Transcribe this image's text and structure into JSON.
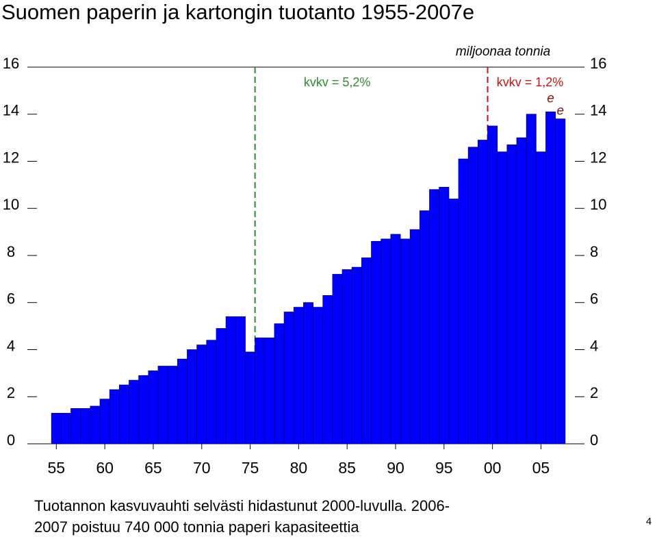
{
  "chart_data": {
    "type": "bar",
    "title": "Suomen paperin ja kartongin tuotanto 1955-2007e",
    "unit_label": "miljoonaa tonnia",
    "x": [
      1955,
      1956,
      1957,
      1958,
      1959,
      1960,
      1961,
      1962,
      1963,
      1964,
      1965,
      1966,
      1967,
      1968,
      1969,
      1970,
      1971,
      1972,
      1973,
      1974,
      1975,
      1976,
      1977,
      1978,
      1979,
      1980,
      1981,
      1982,
      1983,
      1984,
      1985,
      1986,
      1987,
      1988,
      1989,
      1990,
      1991,
      1992,
      1993,
      1994,
      1995,
      1996,
      1997,
      1998,
      1999,
      2000,
      2001,
      2002,
      2003,
      2004,
      2005,
      2006,
      2007
    ],
    "values": [
      1.3,
      1.3,
      1.5,
      1.5,
      1.6,
      1.9,
      2.3,
      2.5,
      2.7,
      2.9,
      3.1,
      3.3,
      3.3,
      3.6,
      4.0,
      4.2,
      4.4,
      4.9,
      5.4,
      5.4,
      3.9,
      4.5,
      4.5,
      5.1,
      5.6,
      5.8,
      6.0,
      5.8,
      6.3,
      7.2,
      7.4,
      7.5,
      7.9,
      8.6,
      8.7,
      8.9,
      8.7,
      9.1,
      9.9,
      10.8,
      10.9,
      10.4,
      12.1,
      12.6,
      12.9,
      13.5,
      12.4,
      12.7,
      13.0,
      14.0,
      12.4,
      14.1,
      13.8
    ],
    "color": "#0000ff",
    "edge_color": "#000080",
    "xlim": [
      1953,
      2008.5
    ],
    "xticks": [
      {
        "value": 1955,
        "label": "55"
      },
      {
        "value": 1960,
        "label": "60"
      },
      {
        "value": 1965,
        "label": "65"
      },
      {
        "value": 1970,
        "label": "70"
      },
      {
        "value": 1975,
        "label": "75"
      },
      {
        "value": 1980,
        "label": "80"
      },
      {
        "value": 1985,
        "label": "85"
      },
      {
        "value": 1990,
        "label": "90"
      },
      {
        "value": 1995,
        "label": "95"
      },
      {
        "value": 2000,
        "label": "00"
      },
      {
        "value": 2005,
        "label": "05"
      }
    ],
    "ylim": [
      0,
      16
    ],
    "yticks": [
      0,
      2,
      4,
      6,
      8,
      10,
      12,
      14,
      16
    ],
    "right_axis": true,
    "grid": false,
    "reference_lines": [
      {
        "x": 1975.5,
        "color": "#2e8b2e",
        "label": "kvkv = 5,2%"
      },
      {
        "x": 1999.5,
        "color": "#cc1111",
        "label": "kvkv = 1,2%"
      }
    ],
    "estimate_marks": [
      {
        "x": 2006,
        "text": "e"
      },
      {
        "x": 2007,
        "text": "e"
      }
    ],
    "note_lines": [
      "Tuotannon kasvuvauhti selvästi hidastunut 2000-luvulla. 2006-",
      "2007 poistuu 740 000 tonnia paperi kapasiteettia"
    ]
  },
  "page_number": "4"
}
